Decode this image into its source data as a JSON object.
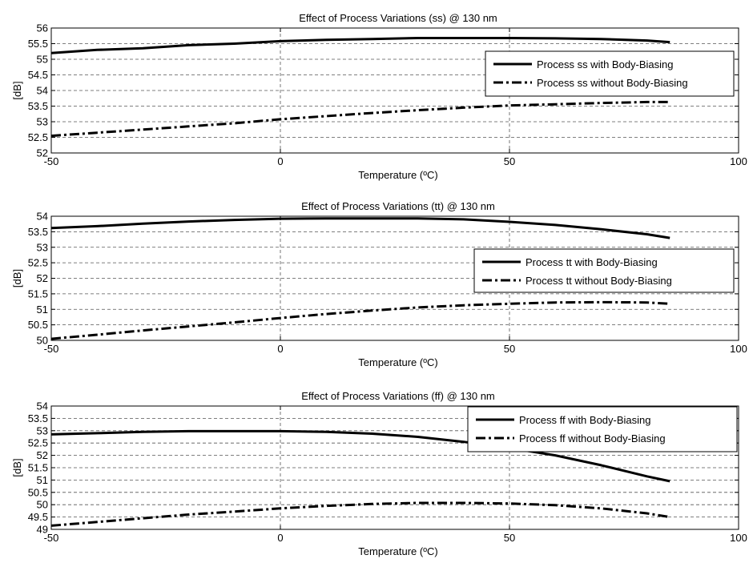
{
  "chart_data": [
    {
      "type": "line",
      "title": "Effect of Process Variations (ss) @ 130 nm",
      "xlabel": "Temperature (ºC)",
      "ylabel": "[dB]",
      "xlim": [
        -50,
        100
      ],
      "ylim": [
        52,
        56
      ],
      "xticks": [
        "-50",
        "0",
        "50",
        "100"
      ],
      "yticks": [
        "52",
        "52.5",
        "53",
        "53.5",
        "54",
        "54.5",
        "55",
        "55.5",
        "56"
      ],
      "grid": true,
      "legend_position": "right",
      "series": [
        {
          "name": "Process ss with Body-Biasing",
          "style": "solid",
          "x": [
            -50,
            -40,
            -30,
            -20,
            -10,
            0,
            10,
            20,
            30,
            40,
            50,
            60,
            70,
            80,
            85
          ],
          "y": [
            55.2,
            55.3,
            55.35,
            55.45,
            55.5,
            55.58,
            55.62,
            55.65,
            55.68,
            55.68,
            55.68,
            55.67,
            55.65,
            55.6,
            55.55
          ]
        },
        {
          "name": "Process ss without Body-Biasing",
          "style": "dashdot",
          "x": [
            -50,
            -40,
            -30,
            -20,
            -10,
            0,
            10,
            20,
            30,
            40,
            50,
            60,
            70,
            80,
            85
          ],
          "y": [
            52.55,
            52.65,
            52.75,
            52.85,
            52.95,
            53.08,
            53.18,
            53.28,
            53.37,
            53.45,
            53.52,
            53.56,
            53.6,
            53.63,
            53.63
          ]
        }
      ]
    },
    {
      "type": "line",
      "title": "Effect of Process Variations (tt) @ 130 nm",
      "xlabel": "Temperature (ºC)",
      "ylabel": "[dB]",
      "xlim": [
        -50,
        100
      ],
      "ylim": [
        50,
        54
      ],
      "xticks": [
        "-50",
        "0",
        "50",
        "100"
      ],
      "yticks": [
        "50",
        "50.5",
        "51",
        "51.5",
        "52",
        "52.5",
        "53",
        "53.5",
        "54"
      ],
      "grid": true,
      "legend_position": "right",
      "series": [
        {
          "name": "Process tt with Body-Biasing",
          "style": "solid",
          "x": [
            -50,
            -40,
            -30,
            -20,
            -10,
            0,
            10,
            20,
            30,
            40,
            50,
            60,
            70,
            80,
            85
          ],
          "y": [
            53.62,
            53.68,
            53.76,
            53.83,
            53.88,
            53.92,
            53.93,
            53.93,
            53.93,
            53.9,
            53.82,
            53.72,
            53.58,
            53.42,
            53.3
          ]
        },
        {
          "name": "Process tt without Body-Biasing",
          "style": "dashdot",
          "x": [
            -50,
            -40,
            -30,
            -20,
            -10,
            0,
            10,
            20,
            30,
            40,
            50,
            60,
            70,
            80,
            85
          ],
          "y": [
            50.05,
            50.18,
            50.32,
            50.45,
            50.58,
            50.72,
            50.85,
            50.96,
            51.06,
            51.13,
            51.18,
            51.22,
            51.23,
            51.22,
            51.18
          ]
        }
      ]
    },
    {
      "type": "line",
      "title": "Effect of Process Variations (ff) @ 130 nm",
      "xlabel": "Temperature (ºC)",
      "ylabel": "[dB]",
      "xlim": [
        -50,
        100
      ],
      "ylim": [
        49,
        54
      ],
      "xticks": [
        "-50",
        "0",
        "50",
        "100"
      ],
      "yticks": [
        "49",
        "49.5",
        "50",
        "50.5",
        "51",
        "51.5",
        "52",
        "52.5",
        "53",
        "53.5",
        "54"
      ],
      "grid": true,
      "legend_position": "top-right",
      "series": [
        {
          "name": "Process ff with Body-Biasing",
          "style": "solid",
          "x": [
            -50,
            -40,
            -30,
            -20,
            -10,
            0,
            10,
            20,
            30,
            40,
            50,
            60,
            70,
            80,
            85
          ],
          "y": [
            52.85,
            52.9,
            52.95,
            52.98,
            52.98,
            52.98,
            52.95,
            52.88,
            52.75,
            52.55,
            52.3,
            52.0,
            51.6,
            51.15,
            50.95
          ]
        },
        {
          "name": "Process ff without Body-Biasing",
          "style": "dashdot",
          "x": [
            -50,
            -40,
            -30,
            -20,
            -10,
            0,
            10,
            20,
            30,
            40,
            50,
            60,
            70,
            80,
            85
          ],
          "y": [
            49.15,
            49.3,
            49.45,
            49.6,
            49.72,
            49.85,
            49.95,
            50.03,
            50.07,
            50.07,
            50.05,
            49.98,
            49.85,
            49.65,
            49.5
          ]
        }
      ]
    }
  ]
}
